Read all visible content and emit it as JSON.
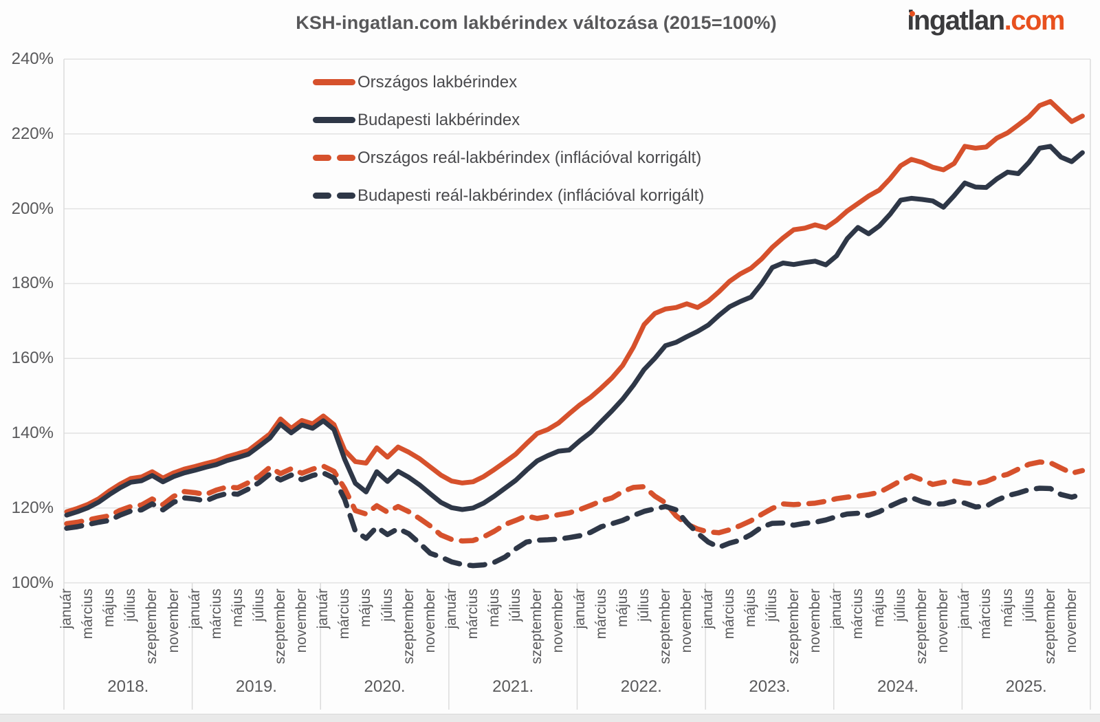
{
  "title": "KSH-ingatlan.com lakbérindex változása (2015=100%)",
  "logo": {
    "part1": "ingatlan",
    "part2": ".com",
    "dark_color": "#3b3b3d",
    "accent_color": "#e8511f"
  },
  "legend": [
    {
      "label": "Országos lakbérindex",
      "color": "#d6512c",
      "dashed": false
    },
    {
      "label": "Budapesti lakbérindex",
      "color": "#2e3747",
      "dashed": false
    },
    {
      "label": "Országos reál-lakbérindex (inflációval korrigált)",
      "color": "#d6512c",
      "dashed": true
    },
    {
      "label": "Budapesti reál-lakbérindex (inflációval korrigált)",
      "color": "#2e3747",
      "dashed": true
    }
  ],
  "chart_data": {
    "type": "line",
    "title": "KSH-ingatlan.com lakbérindex változása (2015=100%)",
    "ylabel": "",
    "xlabel": "",
    "ylim": [
      100,
      240
    ],
    "ytick_step": 20,
    "ytick_labels": [
      "100%",
      "120%",
      "140%",
      "160%",
      "180%",
      "200%",
      "220%",
      "240%"
    ],
    "grid": true,
    "legend_position": "top-left-inside",
    "years": [
      "2018.",
      "2019.",
      "2020.",
      "2021.",
      "2022.",
      "2023.",
      "2024.",
      "2025."
    ],
    "month_labels": [
      "január",
      "március",
      "május",
      "július",
      "szeptember",
      "november"
    ],
    "months_per_year": 12,
    "grid_color": "#e2e2e2",
    "divider_color": "#dcdcdc",
    "series": [
      {
        "name": "Országos lakbérindex",
        "color": "#d6512c",
        "dashed": false,
        "values": [
          119.0,
          119.9,
          121.0,
          122.5,
          124.6,
          126.4,
          127.9,
          128.3,
          129.7,
          128.0,
          129.4,
          130.4,
          131.1,
          131.9,
          132.6,
          133.7,
          134.5,
          135.4,
          137.6,
          139.8,
          143.8,
          141.3,
          143.4,
          142.5,
          144.6,
          142.3,
          135.4,
          132.4,
          132.0,
          136.1,
          133.6,
          136.3,
          134.9,
          133.2,
          131.0,
          128.8,
          127.2,
          126.7,
          127.0,
          128.4,
          130.3,
          132.3,
          134.4,
          137.2,
          139.9,
          141.0,
          142.7,
          145.2,
          147.6,
          149.6,
          152.1,
          154.8,
          158.1,
          163.0,
          169.0,
          172.0,
          173.2,
          173.6,
          174.6,
          173.6,
          175.3,
          177.8,
          180.6,
          182.6,
          184.1,
          186.6,
          189.7,
          192.2,
          194.4,
          194.8,
          195.7,
          194.9,
          196.9,
          199.4,
          201.4,
          203.4,
          205.0,
          208.0,
          211.5,
          213.2,
          212.4,
          211.1,
          210.4,
          212.1,
          216.7,
          216.2,
          216.5,
          218.9,
          220.3,
          222.4,
          224.6,
          227.6,
          228.7,
          226.0,
          223.3,
          224.8
        ]
      },
      {
        "name": "Budapesti lakbérindex",
        "color": "#2e3747",
        "dashed": false,
        "values": [
          118.1,
          119.0,
          120.1,
          121.6,
          123.6,
          125.4,
          126.9,
          127.3,
          128.7,
          127.0,
          128.4,
          129.4,
          130.1,
          130.9,
          131.6,
          132.7,
          133.5,
          134.4,
          136.5,
          138.7,
          142.4,
          140.1,
          142.2,
          141.3,
          143.3,
          141.0,
          133.0,
          126.6,
          124.3,
          129.7,
          127.1,
          129.8,
          128.2,
          126.2,
          123.8,
          121.5,
          120.1,
          119.6,
          120.0,
          121.3,
          123.2,
          125.3,
          127.4,
          130.1,
          132.6,
          134.0,
          135.2,
          135.5,
          138.0,
          140.2,
          143.1,
          146.0,
          149.1,
          152.8,
          157.0,
          160.0,
          163.4,
          164.3,
          165.8,
          167.2,
          168.9,
          171.5,
          173.8,
          175.2,
          176.4,
          180.0,
          184.3,
          185.5,
          185.1,
          185.6,
          186.0,
          185.0,
          187.4,
          192.0,
          195.0,
          193.3,
          195.4,
          198.5,
          202.3,
          202.8,
          202.5,
          202.1,
          200.4,
          203.5,
          206.9,
          205.8,
          205.7,
          208.0,
          209.8,
          209.4,
          212.4,
          216.2,
          216.7,
          213.8,
          212.6,
          215.0
        ]
      },
      {
        "name": "Országos reál-lakbérindex (inflációval korrigált)",
        "color": "#d6512c",
        "dashed": true,
        "values": [
          115.8,
          116.2,
          116.8,
          117.4,
          117.9,
          119.4,
          120.4,
          120.8,
          122.4,
          120.9,
          123.1,
          124.4,
          124.1,
          123.6,
          124.8,
          125.6,
          125.4,
          126.8,
          128.5,
          130.9,
          129.2,
          130.5,
          129.3,
          130.4,
          131.2,
          129.8,
          125.2,
          119.3,
          118.4,
          120.6,
          118.9,
          120.4,
          119.0,
          117.2,
          115.2,
          112.8,
          111.6,
          111.2,
          111.3,
          112.3,
          113.8,
          115.6,
          116.7,
          117.9,
          117.2,
          117.7,
          118.2,
          118.7,
          119.6,
          120.7,
          121.9,
          122.7,
          124.4,
          125.5,
          125.7,
          123.2,
          121.4,
          117.9,
          115.7,
          114.4,
          113.6,
          113.4,
          114.2,
          115.3,
          116.6,
          118.3,
          119.9,
          121.1,
          120.9,
          121.1,
          121.3,
          121.8,
          122.5,
          122.9,
          123.2,
          123.6,
          124.2,
          125.7,
          127.3,
          128.6,
          127.5,
          126.3,
          126.9,
          127.2,
          126.7,
          126.5,
          127.1,
          128.3,
          129.0,
          130.4,
          131.7,
          132.3,
          132.1,
          130.7,
          129.3,
          130.0
        ]
      },
      {
        "name": "Budapesti reál-lakbérindex (inflációval korrigált)",
        "color": "#2e3747",
        "dashed": true,
        "values": [
          114.6,
          115.0,
          115.6,
          116.2,
          116.7,
          118.1,
          119.2,
          119.5,
          121.1,
          119.5,
          121.5,
          122.7,
          122.4,
          121.9,
          123.1,
          123.9,
          123.7,
          125.1,
          126.8,
          129.1,
          127.5,
          128.8,
          127.6,
          128.7,
          129.4,
          128.0,
          122.3,
          113.8,
          111.9,
          114.9,
          112.9,
          114.5,
          113.1,
          110.6,
          107.9,
          106.9,
          105.6,
          104.9,
          104.6,
          104.8,
          105.5,
          106.9,
          109.1,
          110.9,
          111.4,
          111.5,
          111.7,
          112.1,
          112.6,
          113.5,
          115.0,
          115.8,
          116.7,
          118.0,
          119.1,
          119.8,
          120.4,
          119.5,
          116.1,
          113.3,
          110.9,
          109.5,
          110.6,
          111.4,
          112.9,
          114.9,
          115.9,
          116.0,
          115.4,
          115.9,
          116.2,
          116.8,
          117.7,
          118.4,
          118.6,
          118.0,
          119.0,
          120.5,
          121.8,
          122.8,
          121.7,
          121.0,
          121.1,
          121.8,
          121.3,
          120.3,
          120.5,
          122.1,
          123.3,
          124.0,
          124.9,
          125.3,
          125.2,
          123.6,
          122.9,
          123.7
        ]
      }
    ]
  }
}
